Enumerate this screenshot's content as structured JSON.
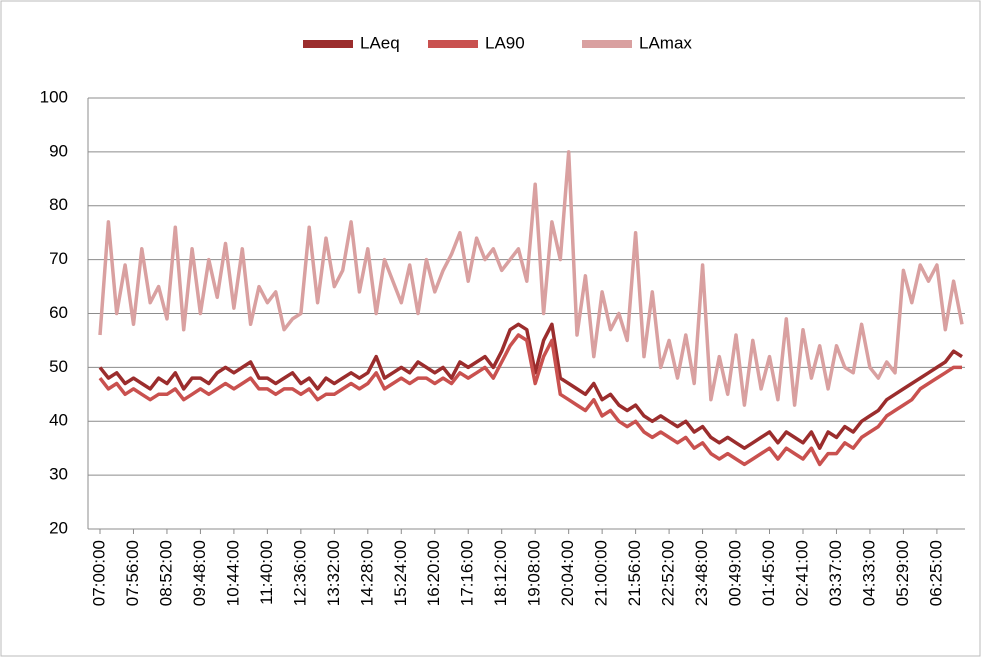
{
  "chart_data": {
    "type": "line",
    "legend": "top",
    "grid": true,
    "ylim": [
      20,
      100
    ],
    "yticks": [
      20,
      30,
      40,
      50,
      60,
      70,
      80,
      90,
      100
    ],
    "categories": [
      "07:00:00",
      null,
      null,
      null,
      "07:56:00",
      null,
      null,
      null,
      "08:52:00",
      null,
      null,
      null,
      "09:48:00",
      null,
      null,
      null,
      "10:44:00",
      null,
      null,
      null,
      "11:40:00",
      null,
      null,
      null,
      "12:36:00",
      null,
      null,
      null,
      "13:32:00",
      null,
      null,
      null,
      "14:28:00",
      null,
      null,
      null,
      "15:24:00",
      null,
      null,
      null,
      "16:20:00",
      null,
      null,
      null,
      "17:16:00",
      null,
      null,
      null,
      "18:12:00",
      null,
      null,
      null,
      "19:08:00",
      null,
      null,
      null,
      "20:04:00",
      null,
      null,
      null,
      "21:00:00",
      null,
      null,
      null,
      "21:56:00",
      null,
      null,
      null,
      "22:52:00",
      null,
      null,
      null,
      "23:48:00",
      null,
      null,
      null,
      "00:49:00",
      null,
      null,
      null,
      "01:45:00",
      null,
      null,
      null,
      "02:41:00",
      null,
      null,
      null,
      "03:37:00",
      null,
      null,
      null,
      "04:33:00",
      null,
      null,
      null,
      "05:29:00",
      null,
      null,
      null,
      "06:25:00",
      null,
      null,
      null
    ],
    "series": [
      {
        "name": "LAeq",
        "color": "#9b2d2d",
        "values": [
          50,
          48,
          49,
          47,
          48,
          47,
          46,
          48,
          47,
          49,
          46,
          48,
          48,
          47,
          49,
          50,
          49,
          50,
          51,
          48,
          48,
          47,
          48,
          49,
          47,
          48,
          46,
          48,
          47,
          48,
          49,
          48,
          49,
          52,
          48,
          49,
          50,
          49,
          51,
          50,
          49,
          50,
          48,
          51,
          50,
          51,
          52,
          50,
          53,
          57,
          58,
          57,
          49,
          55,
          58,
          48,
          47,
          46,
          45,
          47,
          44,
          45,
          43,
          42,
          43,
          41,
          40,
          41,
          40,
          39,
          40,
          38,
          39,
          37,
          36,
          37,
          36,
          35,
          36,
          37,
          38,
          36,
          38,
          37,
          36,
          38,
          35,
          38,
          37,
          39,
          38,
          40,
          41,
          42,
          44,
          45,
          46,
          47,
          48,
          49,
          50,
          51,
          53,
          52
        ]
      },
      {
        "name": "LA90",
        "color": "#c9514f",
        "values": [
          48,
          46,
          47,
          45,
          46,
          45,
          44,
          45,
          45,
          46,
          44,
          45,
          46,
          45,
          46,
          47,
          46,
          47,
          48,
          46,
          46,
          45,
          46,
          46,
          45,
          46,
          44,
          45,
          45,
          46,
          47,
          46,
          47,
          49,
          46,
          47,
          48,
          47,
          48,
          48,
          47,
          48,
          47,
          49,
          48,
          49,
          50,
          48,
          51,
          54,
          56,
          55,
          47,
          52,
          55,
          45,
          44,
          43,
          42,
          44,
          41,
          42,
          40,
          39,
          40,
          38,
          37,
          38,
          37,
          36,
          37,
          35,
          36,
          34,
          33,
          34,
          33,
          32,
          33,
          34,
          35,
          33,
          35,
          34,
          33,
          35,
          32,
          34,
          34,
          36,
          35,
          37,
          38,
          39,
          41,
          42,
          43,
          44,
          46,
          47,
          48,
          49,
          50,
          50
        ]
      },
      {
        "name": "LAmax",
        "color": "#d9a0a0",
        "values": [
          56,
          77,
          60,
          69,
          58,
          72,
          62,
          65,
          59,
          76,
          57,
          72,
          60,
          70,
          63,
          73,
          61,
          72,
          58,
          65,
          62,
          64,
          57,
          59,
          60,
          76,
          62,
          74,
          65,
          68,
          77,
          64,
          72,
          60,
          70,
          66,
          62,
          69,
          60,
          70,
          64,
          68,
          71,
          75,
          66,
          74,
          70,
          72,
          68,
          70,
          72,
          66,
          84,
          60,
          77,
          70,
          90,
          56,
          67,
          52,
          64,
          57,
          60,
          55,
          75,
          52,
          64,
          50,
          55,
          48,
          56,
          47,
          69,
          44,
          52,
          45,
          56,
          43,
          55,
          46,
          52,
          44,
          59,
          43,
          57,
          48,
          54,
          46,
          54,
          50,
          49,
          58,
          50,
          48,
          51,
          49,
          68,
          62,
          69,
          66,
          69,
          57,
          66,
          58
        ]
      }
    ]
  }
}
